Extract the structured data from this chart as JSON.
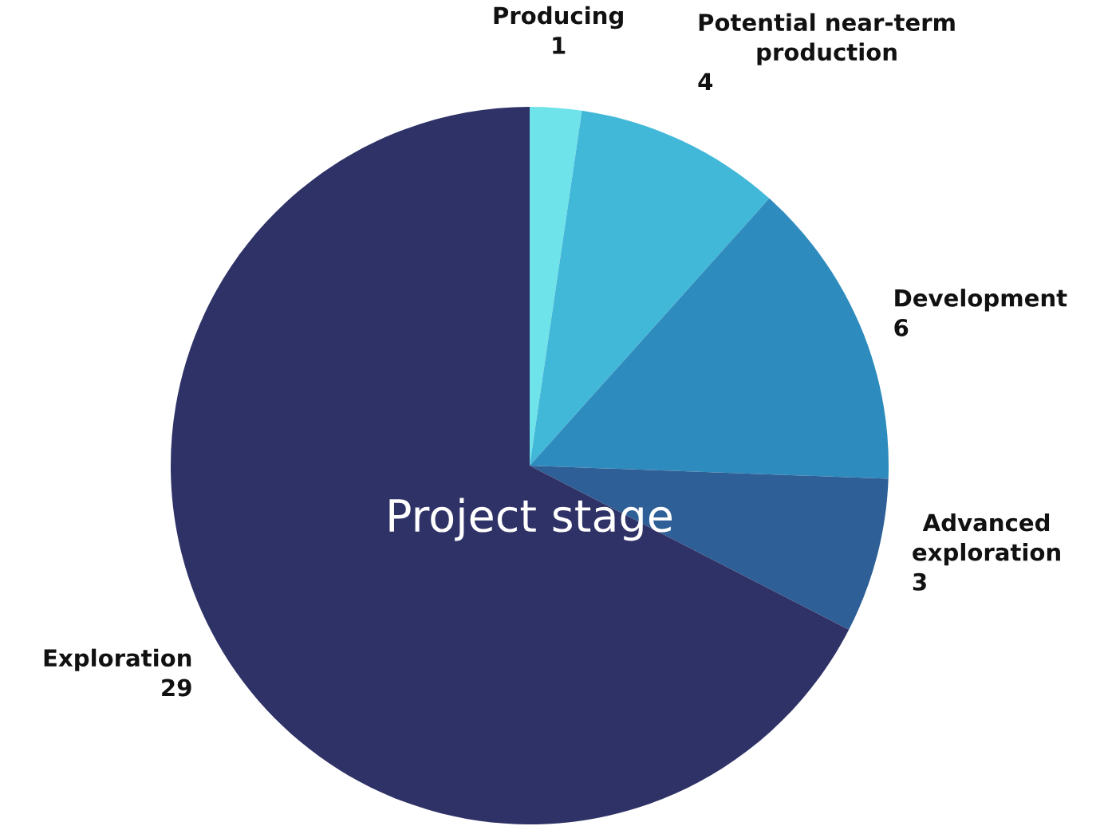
{
  "chart_data": {
    "type": "pie",
    "title": "Project stage",
    "categories": [
      "Producing",
      "Potential near-term production",
      "Development",
      "Advanced exploration",
      "Exploration"
    ],
    "data_labels": true,
    "values": [
      1,
      4,
      6,
      3,
      29
    ],
    "colors": [
      "#6ee3ea",
      "#42b8d8",
      "#2e8bbd",
      "#2e5f96",
      "#2f3266"
    ]
  }
}
